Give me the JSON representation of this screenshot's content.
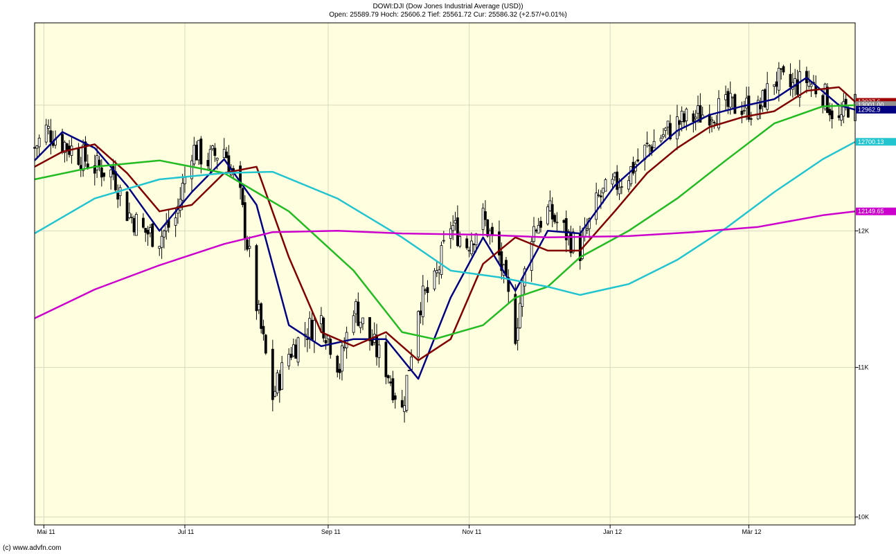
{
  "header": {
    "title": "DOWI:DJI (Dow Jones Industrial Average (USD))",
    "ohlc": "Open: 25589.79 Hoch: 25606.2 Tief: 25561.72 Cur: 25586.32 (+2.57/+0.01%)"
  },
  "footer": {
    "copyright": "(c) www.advfn.com"
  },
  "chart_data": {
    "type": "candlestick",
    "title": "DOWI:DJI (Dow Jones Industrial Average (USD))",
    "y_scale": "log",
    "ylim": [
      9950,
      13700
    ],
    "yticks": [
      {
        "value": 10000,
        "label": "10K"
      },
      {
        "value": 11000,
        "label": "11K"
      },
      {
        "value": 12000,
        "label": "12K"
      }
    ],
    "x_range": [
      "2011-04-27",
      "2012-04-16"
    ],
    "xticks": [
      {
        "date": "2011-05-01",
        "label": "Mai 11"
      },
      {
        "date": "2011-07-01",
        "label": "Jul 11"
      },
      {
        "date": "2011-09-01",
        "label": "Sep 11"
      },
      {
        "date": "2011-11-01",
        "label": "Nov 11"
      },
      {
        "date": "2012-01-01",
        "label": "Jan 12"
      },
      {
        "date": "2012-03-01",
        "label": "Mär 12"
      }
    ],
    "grid": true,
    "colors": {
      "background": "#ffffe0",
      "up": "#ffffff",
      "down": "#000000"
    },
    "price_tags": [
      {
        "value": 13027.6,
        "label": "13027.6",
        "color": "#a00000"
      },
      {
        "value": 13001.0,
        "label": "13001.00",
        "color": "#909090"
      },
      {
        "value": 12962.9,
        "label": "12962.9",
        "color": "#000080"
      },
      {
        "value": 12700.13,
        "label": "12700.13",
        "color": "#22c4d0"
      },
      {
        "value": 12149.65,
        "label": "12149.65",
        "color": "#cc00cc"
      }
    ],
    "close_series": [
      [
        "2011-04-27",
        12650
      ],
      [
        "2011-05-02",
        12800
      ],
      [
        "2011-05-09",
        12700
      ],
      [
        "2011-05-16",
        12600
      ],
      [
        "2011-05-23",
        12500
      ],
      [
        "2011-05-31",
        12450
      ],
      [
        "2011-06-06",
        12150
      ],
      [
        "2011-06-13",
        12000
      ],
      [
        "2011-06-20",
        11950
      ],
      [
        "2011-06-27",
        12100
      ],
      [
        "2011-07-04",
        12650
      ],
      [
        "2011-07-11",
        12550
      ],
      [
        "2011-07-18",
        12650
      ],
      [
        "2011-07-25",
        12250
      ],
      [
        "2011-08-01",
        11450
      ],
      [
        "2011-08-08",
        10800
      ],
      [
        "2011-08-15",
        11100
      ],
      [
        "2011-08-22",
        11250
      ],
      [
        "2011-08-29",
        11350
      ],
      [
        "2011-09-06",
        11000
      ],
      [
        "2011-09-12",
        11450
      ],
      [
        "2011-09-19",
        11200
      ],
      [
        "2011-09-26",
        11000
      ],
      [
        "2011-10-03",
        10700
      ],
      [
        "2011-10-10",
        11450
      ],
      [
        "2011-10-17",
        11600
      ],
      [
        "2011-10-24",
        12050
      ],
      [
        "2011-10-31",
        11900
      ],
      [
        "2011-11-07",
        12100
      ],
      [
        "2011-11-14",
        11800
      ],
      [
        "2011-11-21",
        11250
      ],
      [
        "2011-11-28",
        12000
      ],
      [
        "2011-12-05",
        12150
      ],
      [
        "2011-12-12",
        12000
      ],
      [
        "2011-12-19",
        11850
      ],
      [
        "2011-12-27",
        12250
      ],
      [
        "2012-01-03",
        12350
      ],
      [
        "2012-01-09",
        12450
      ],
      [
        "2012-01-17",
        12650
      ],
      [
        "2012-01-23",
        12750
      ],
      [
        "2012-01-30",
        12850
      ],
      [
        "2012-02-06",
        12900
      ],
      [
        "2012-02-13",
        12950
      ],
      [
        "2012-02-21",
        12980
      ],
      [
        "2012-02-27",
        13000
      ],
      [
        "2012-03-05",
        12950
      ],
      [
        "2012-03-12",
        13220
      ],
      [
        "2012-03-19",
        13150
      ],
      [
        "2012-03-26",
        13210
      ],
      [
        "2012-04-02",
        13100
      ],
      [
        "2012-04-09",
        12850
      ],
      [
        "2012-04-13",
        13000
      ],
      [
        "2012-04-16",
        13001
      ]
    ],
    "series": [
      {
        "name": "",
        "color": "#000080",
        "values": [
          [
            "2011-04-27",
            12550
          ],
          [
            "2011-05-09",
            12780
          ],
          [
            "2011-05-23",
            12650
          ],
          [
            "2011-06-06",
            12350
          ],
          [
            "2011-06-20",
            12000
          ],
          [
            "2011-07-04",
            12300
          ],
          [
            "2011-07-18",
            12560
          ],
          [
            "2011-08-01",
            12200
          ],
          [
            "2011-08-15",
            11300
          ],
          [
            "2011-08-29",
            11150
          ],
          [
            "2011-09-12",
            11200
          ],
          [
            "2011-09-26",
            11200
          ],
          [
            "2011-10-10",
            10920
          ],
          [
            "2011-10-24",
            11500
          ],
          [
            "2011-11-07",
            11950
          ],
          [
            "2011-11-21",
            11550
          ],
          [
            "2011-12-05",
            12000
          ],
          [
            "2011-12-19",
            11980
          ],
          [
            "2012-01-03",
            12350
          ],
          [
            "2012-01-17",
            12580
          ],
          [
            "2012-01-30",
            12790
          ],
          [
            "2012-02-13",
            12920
          ],
          [
            "2012-02-27",
            12990
          ],
          [
            "2012-03-12",
            13050
          ],
          [
            "2012-03-26",
            13230
          ],
          [
            "2012-04-09",
            13000
          ],
          [
            "2012-04-16",
            12963
          ]
        ]
      },
      {
        "name": "",
        "color": "#800000",
        "values": [
          [
            "2011-04-27",
            12500
          ],
          [
            "2011-05-09",
            12620
          ],
          [
            "2011-05-23",
            12680
          ],
          [
            "2011-06-06",
            12450
          ],
          [
            "2011-06-20",
            12150
          ],
          [
            "2011-07-04",
            12200
          ],
          [
            "2011-07-18",
            12450
          ],
          [
            "2011-08-01",
            12500
          ],
          [
            "2011-08-15",
            11800
          ],
          [
            "2011-08-29",
            11250
          ],
          [
            "2011-09-12",
            11150
          ],
          [
            "2011-09-26",
            11250
          ],
          [
            "2011-10-10",
            11050
          ],
          [
            "2011-10-24",
            11200
          ],
          [
            "2011-11-07",
            11750
          ],
          [
            "2011-11-21",
            11950
          ],
          [
            "2011-12-05",
            11850
          ],
          [
            "2011-12-19",
            11850
          ],
          [
            "2012-01-03",
            12150
          ],
          [
            "2012-01-17",
            12450
          ],
          [
            "2012-01-30",
            12650
          ],
          [
            "2012-02-13",
            12820
          ],
          [
            "2012-02-27",
            12900
          ],
          [
            "2012-03-12",
            12950
          ],
          [
            "2012-03-26",
            13120
          ],
          [
            "2012-04-09",
            13150
          ],
          [
            "2012-04-16",
            13028
          ]
        ]
      },
      {
        "name": "",
        "color": "#22bb22",
        "values": [
          [
            "2011-04-27",
            12400
          ],
          [
            "2011-05-23",
            12500
          ],
          [
            "2011-06-20",
            12550
          ],
          [
            "2011-07-18",
            12450
          ],
          [
            "2011-08-15",
            12150
          ],
          [
            "2011-09-12",
            11700
          ],
          [
            "2011-10-03",
            11250
          ],
          [
            "2011-10-17",
            11200
          ],
          [
            "2011-11-07",
            11300
          ],
          [
            "2011-11-21",
            11500
          ],
          [
            "2011-12-05",
            11580
          ],
          [
            "2011-12-19",
            11800
          ],
          [
            "2012-01-09",
            12000
          ],
          [
            "2012-01-30",
            12250
          ],
          [
            "2012-02-20",
            12550
          ],
          [
            "2012-03-12",
            12850
          ],
          [
            "2012-04-02",
            12990
          ],
          [
            "2012-04-16",
            13000
          ]
        ]
      },
      {
        "name": "",
        "color": "#22c4d0",
        "values": [
          [
            "2011-04-27",
            11980
          ],
          [
            "2011-05-23",
            12250
          ],
          [
            "2011-06-20",
            12400
          ],
          [
            "2011-07-18",
            12450
          ],
          [
            "2011-08-08",
            12460
          ],
          [
            "2011-09-05",
            12250
          ],
          [
            "2011-10-03",
            11950
          ],
          [
            "2011-10-24",
            11700
          ],
          [
            "2011-11-14",
            11650
          ],
          [
            "2011-12-05",
            11580
          ],
          [
            "2011-12-19",
            11520
          ],
          [
            "2012-01-09",
            11600
          ],
          [
            "2012-01-30",
            11780
          ],
          [
            "2012-02-20",
            12020
          ],
          [
            "2012-03-12",
            12300
          ],
          [
            "2012-04-02",
            12560
          ],
          [
            "2012-04-16",
            12700
          ]
        ]
      },
      {
        "name": "",
        "color": "#cc00cc",
        "values": [
          [
            "2011-04-27",
            11350
          ],
          [
            "2011-05-23",
            11560
          ],
          [
            "2011-06-20",
            11740
          ],
          [
            "2011-07-18",
            11900
          ],
          [
            "2011-08-08",
            11990
          ],
          [
            "2011-09-05",
            12000
          ],
          [
            "2011-10-03",
            11980
          ],
          [
            "2011-11-07",
            11970
          ],
          [
            "2011-12-05",
            11950
          ],
          [
            "2012-01-09",
            11960
          ],
          [
            "2012-02-06",
            11990
          ],
          [
            "2012-03-05",
            12030
          ],
          [
            "2012-04-02",
            12120
          ],
          [
            "2012-04-16",
            12150
          ]
        ]
      }
    ]
  }
}
